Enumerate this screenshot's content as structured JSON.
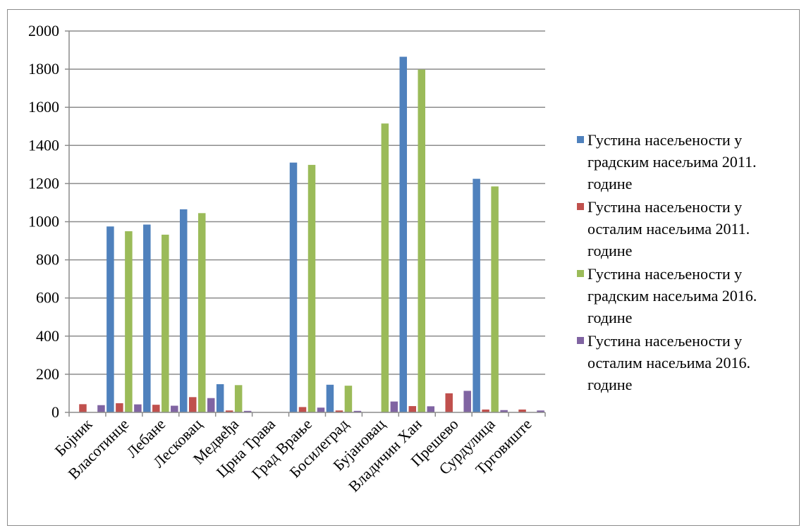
{
  "chart_data": {
    "type": "bar",
    "title": "",
    "xlabel": "",
    "ylabel": "",
    "ylim": [
      0,
      2000
    ],
    "yticks": [
      "0",
      "200",
      "400",
      "600",
      "800",
      "1000",
      "1200",
      "1400",
      "1600",
      "1800",
      "2000"
    ],
    "grid": true,
    "legend_position": "right",
    "categories": [
      "Бојник",
      "Власотинце",
      "Лебане",
      "Лесковац",
      "Медвеђа",
      "Црна Трава",
      "Град Врање",
      "Босилеград",
      "Бујановац",
      "Владичин Хан",
      "Прешево",
      "Сурдулица",
      "Трговиште"
    ],
    "series": [
      {
        "name": "Густина насељености у градским насељима 2011. године",
        "color": "#4f81bd",
        "values": [
          0,
          975,
          985,
          1065,
          148,
          0,
          1310,
          145,
          0,
          1865,
          0,
          1225,
          0
        ]
      },
      {
        "name": "Густина насељености у осталим насељима 2011. године",
        "color": "#c0504d",
        "values": [
          43,
          48,
          40,
          80,
          10,
          0,
          28,
          10,
          0,
          33,
          100,
          15,
          15
        ]
      },
      {
        "name": "Густина насељености у градским насељима 2016. године",
        "color": "#9bbb59",
        "values": [
          0,
          950,
          932,
          1045,
          143,
          0,
          1298,
          140,
          1515,
          1798,
          0,
          1185,
          0
        ]
      },
      {
        "name": "Густина насељености у осталим насељима 2016. године",
        "color": "#8064a2",
        "values": [
          38,
          42,
          35,
          75,
          8,
          0,
          25,
          8,
          57,
          32,
          113,
          12,
          10
        ]
      }
    ]
  }
}
